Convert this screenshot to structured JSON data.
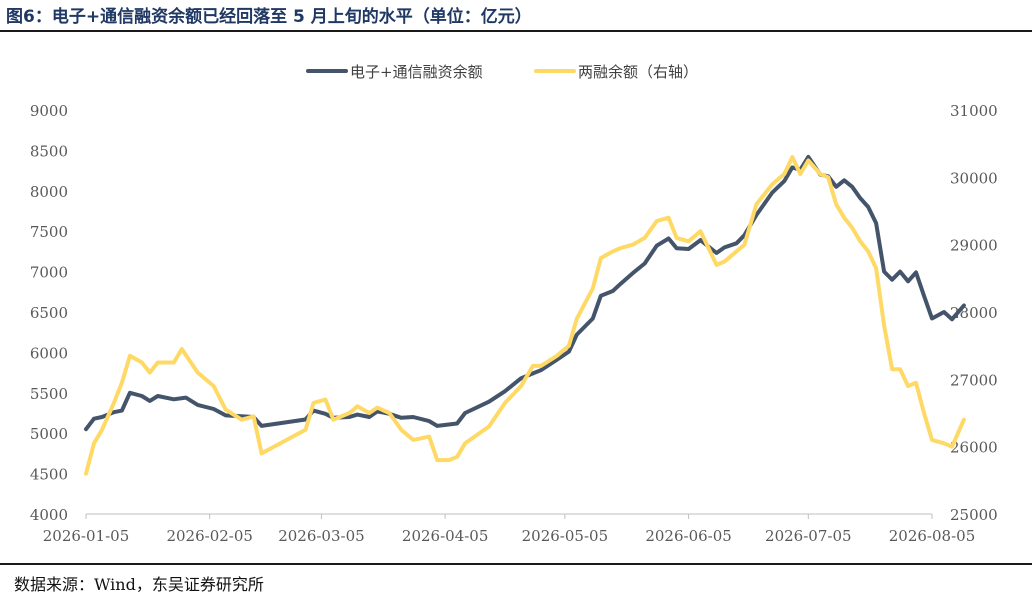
{
  "title": "图6：电子+通信融资余额已经回落至 5 月上旬的水平（单位：亿元）",
  "source": "数据来源：Wind，东吴证券研究所",
  "chart_data": {
    "type": "line",
    "legend_position": "top-center",
    "grid": false,
    "y_left": {
      "min": 4000,
      "max": 9000,
      "ticks": [
        4000,
        4500,
        5000,
        5500,
        6000,
        6500,
        7000,
        7500,
        8000,
        8500,
        9000
      ]
    },
    "y_right": {
      "min": 25000,
      "max": 31000,
      "ticks": [
        25000,
        26000,
        27000,
        28000,
        29000,
        30000,
        31000
      ]
    },
    "x_ticks": [
      "2026-01-05",
      "2026-02-05",
      "2026-03-05",
      "2026-04-05",
      "2026-05-05",
      "2026-06-05",
      "2026-07-05",
      "2026-08-05"
    ],
    "series": [
      {
        "name": "电子+通信融资余额",
        "axis": "left",
        "color": "#44546a",
        "points": [
          [
            "2026-01-05",
            5050
          ],
          [
            "2026-01-07",
            5180
          ],
          [
            "2026-01-09",
            5200
          ],
          [
            "2026-01-12",
            5260
          ],
          [
            "2026-01-14",
            5280
          ],
          [
            "2026-01-16",
            5500
          ],
          [
            "2026-01-19",
            5460
          ],
          [
            "2026-01-21",
            5400
          ],
          [
            "2026-01-23",
            5460
          ],
          [
            "2026-01-27",
            5420
          ],
          [
            "2026-01-30",
            5440
          ],
          [
            "2026-02-02",
            5350
          ],
          [
            "2026-02-06",
            5300
          ],
          [
            "2026-02-09",
            5220
          ],
          [
            "2026-02-13",
            5210
          ],
          [
            "2026-02-16",
            5200
          ],
          [
            "2026-02-18",
            5090
          ],
          [
            "2026-03-01",
            5170
          ],
          [
            "2026-03-03",
            5280
          ],
          [
            "2026-03-06",
            5240
          ],
          [
            "2026-03-08",
            5190
          ],
          [
            "2026-03-12",
            5200
          ],
          [
            "2026-03-14",
            5230
          ],
          [
            "2026-03-17",
            5200
          ],
          [
            "2026-03-19",
            5270
          ],
          [
            "2026-03-22",
            5240
          ],
          [
            "2026-03-25",
            5190
          ],
          [
            "2026-03-28",
            5200
          ],
          [
            "2026-04-01",
            5150
          ],
          [
            "2026-04-03",
            5090
          ],
          [
            "2026-04-08",
            5120
          ],
          [
            "2026-04-10",
            5250
          ],
          [
            "2026-04-16",
            5390
          ],
          [
            "2026-04-20",
            5520
          ],
          [
            "2026-04-24",
            5680
          ],
          [
            "2026-04-27",
            5740
          ],
          [
            "2026-04-29",
            5780
          ],
          [
            "2026-05-03",
            5910
          ],
          [
            "2026-05-06",
            6010
          ],
          [
            "2026-05-08",
            6220
          ],
          [
            "2026-05-12",
            6420
          ],
          [
            "2026-05-14",
            6700
          ],
          [
            "2026-05-17",
            6760
          ],
          [
            "2026-05-19",
            6850
          ],
          [
            "2026-05-22",
            6980
          ],
          [
            "2026-05-25",
            7100
          ],
          [
            "2026-05-28",
            7320
          ],
          [
            "2026-05-31",
            7410
          ],
          [
            "2026-06-02",
            7290
          ],
          [
            "2026-06-05",
            7280
          ],
          [
            "2026-06-08",
            7390
          ],
          [
            "2026-06-10",
            7310
          ],
          [
            "2026-06-12",
            7230
          ],
          [
            "2026-06-14",
            7300
          ],
          [
            "2026-06-17",
            7350
          ],
          [
            "2026-06-19",
            7450
          ],
          [
            "2026-06-22",
            7700
          ],
          [
            "2026-06-26",
            7980
          ],
          [
            "2026-06-29",
            8120
          ],
          [
            "2026-07-01",
            8290
          ],
          [
            "2026-07-03",
            8260
          ],
          [
            "2026-07-05",
            8420
          ],
          [
            "2026-07-08",
            8200
          ],
          [
            "2026-07-10",
            8180
          ],
          [
            "2026-07-12",
            8050
          ],
          [
            "2026-07-14",
            8130
          ],
          [
            "2026-07-16",
            8050
          ],
          [
            "2026-07-18",
            7910
          ],
          [
            "2026-07-20",
            7800
          ],
          [
            "2026-07-22",
            7600
          ],
          [
            "2026-07-24",
            7000
          ],
          [
            "2026-07-26",
            6900
          ],
          [
            "2026-07-28",
            7000
          ],
          [
            "2026-07-30",
            6880
          ],
          [
            "2026-08-01",
            6990
          ],
          [
            "2026-08-03",
            6700
          ],
          [
            "2026-08-05",
            6420
          ],
          [
            "2026-08-08",
            6500
          ],
          [
            "2026-08-10",
            6410
          ],
          [
            "2026-08-13",
            6580
          ]
        ]
      },
      {
        "name": "两融余额（右轴）",
        "axis": "right",
        "color": "#ffd966",
        "points": [
          [
            "2026-01-05",
            25600
          ],
          [
            "2026-01-07",
            26050
          ],
          [
            "2026-01-09",
            26250
          ],
          [
            "2026-01-12",
            26650
          ],
          [
            "2026-01-14",
            26950
          ],
          [
            "2026-01-16",
            27350
          ],
          [
            "2026-01-19",
            27250
          ],
          [
            "2026-01-21",
            27100
          ],
          [
            "2026-01-23",
            27250
          ],
          [
            "2026-01-27",
            27250
          ],
          [
            "2026-01-29",
            27450
          ],
          [
            "2026-02-02",
            27100
          ],
          [
            "2026-02-06",
            26900
          ],
          [
            "2026-02-09",
            26550
          ],
          [
            "2026-02-13",
            26400
          ],
          [
            "2026-02-16",
            26450
          ],
          [
            "2026-02-18",
            25900
          ],
          [
            "2026-03-01",
            26250
          ],
          [
            "2026-03-03",
            26650
          ],
          [
            "2026-03-06",
            26700
          ],
          [
            "2026-03-08",
            26400
          ],
          [
            "2026-03-12",
            26500
          ],
          [
            "2026-03-14",
            26600
          ],
          [
            "2026-03-17",
            26500
          ],
          [
            "2026-03-19",
            26580
          ],
          [
            "2026-03-22",
            26500
          ],
          [
            "2026-03-25",
            26250
          ],
          [
            "2026-03-28",
            26100
          ],
          [
            "2026-04-01",
            26150
          ],
          [
            "2026-04-03",
            25800
          ],
          [
            "2026-04-06",
            25800
          ],
          [
            "2026-04-08",
            25850
          ],
          [
            "2026-04-10",
            26050
          ],
          [
            "2026-04-16",
            26300
          ],
          [
            "2026-04-20",
            26650
          ],
          [
            "2026-04-24",
            26900
          ],
          [
            "2026-04-27",
            27200
          ],
          [
            "2026-04-29",
            27200
          ],
          [
            "2026-05-03",
            27350
          ],
          [
            "2026-05-06",
            27500
          ],
          [
            "2026-05-08",
            27900
          ],
          [
            "2026-05-12",
            28350
          ],
          [
            "2026-05-14",
            28800
          ],
          [
            "2026-05-17",
            28900
          ],
          [
            "2026-05-19",
            28950
          ],
          [
            "2026-05-22",
            29000
          ],
          [
            "2026-05-25",
            29100
          ],
          [
            "2026-05-28",
            29350
          ],
          [
            "2026-05-31",
            29400
          ],
          [
            "2026-06-02",
            29100
          ],
          [
            "2026-06-05",
            29050
          ],
          [
            "2026-06-08",
            29200
          ],
          [
            "2026-06-10",
            28950
          ],
          [
            "2026-06-12",
            28700
          ],
          [
            "2026-06-14",
            28750
          ],
          [
            "2026-06-17",
            28900
          ],
          [
            "2026-06-19",
            29000
          ],
          [
            "2026-06-22",
            29600
          ],
          [
            "2026-06-26",
            29900
          ],
          [
            "2026-06-29",
            30050
          ],
          [
            "2026-07-01",
            30300
          ],
          [
            "2026-07-03",
            30050
          ],
          [
            "2026-07-05",
            30250
          ],
          [
            "2026-07-08",
            30050
          ],
          [
            "2026-07-10",
            30000
          ],
          [
            "2026-07-12",
            29600
          ],
          [
            "2026-07-14",
            29400
          ],
          [
            "2026-07-16",
            29250
          ],
          [
            "2026-07-18",
            29050
          ],
          [
            "2026-07-20",
            28900
          ],
          [
            "2026-07-22",
            28650
          ],
          [
            "2026-07-24",
            27800
          ],
          [
            "2026-07-26",
            27150
          ],
          [
            "2026-07-28",
            27150
          ],
          [
            "2026-07-30",
            26900
          ],
          [
            "2026-08-01",
            26950
          ],
          [
            "2026-08-03",
            26500
          ],
          [
            "2026-08-05",
            26100
          ],
          [
            "2026-08-08",
            26050
          ],
          [
            "2026-08-10",
            26000
          ],
          [
            "2026-08-13",
            26400
          ]
        ]
      }
    ]
  }
}
